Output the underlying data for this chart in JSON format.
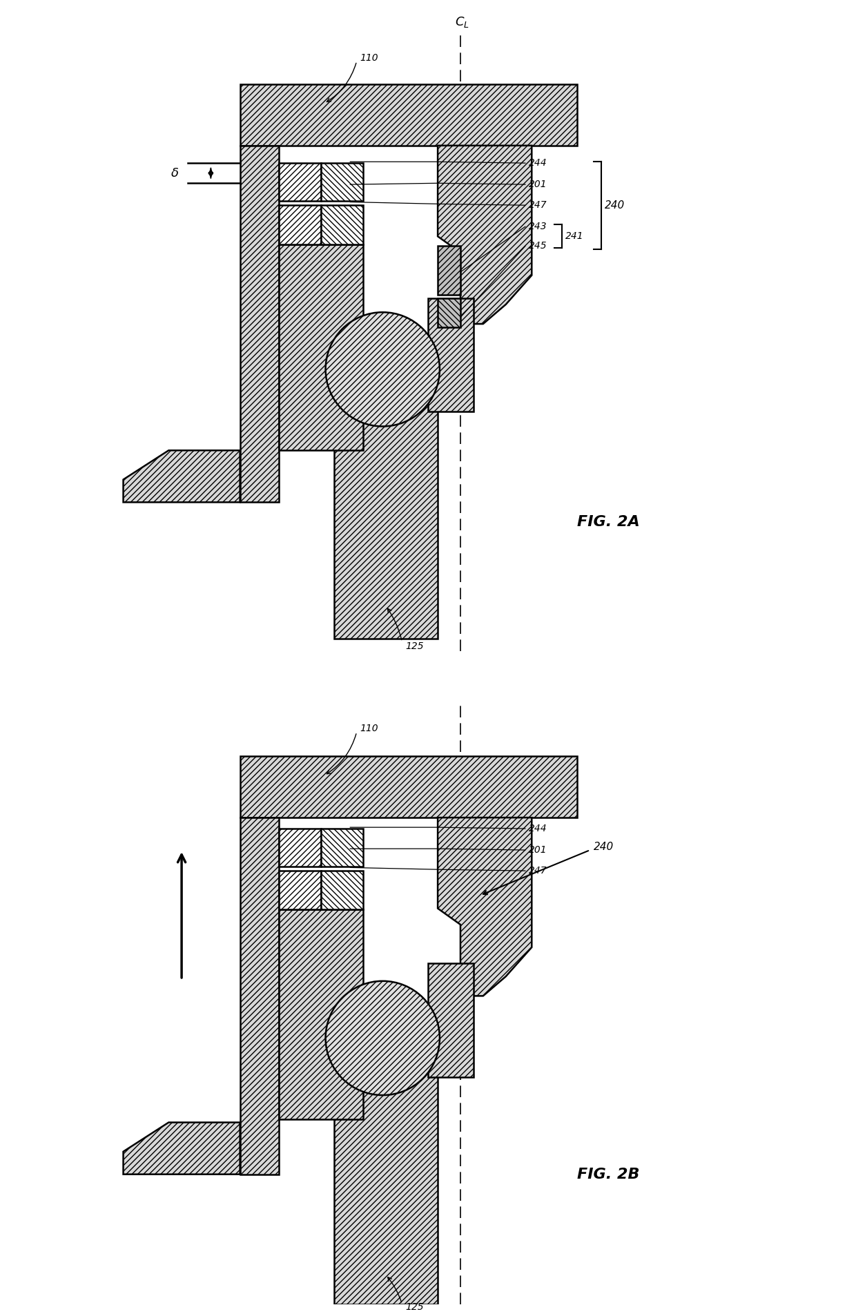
{
  "fig_title_2a": "FIG. 2A",
  "fig_title_2b": "FIG. 2B",
  "label_110": "110",
  "label_125": "125",
  "label_244": "244",
  "label_201": "201",
  "label_247": "247",
  "label_243": "243",
  "label_241": "241",
  "label_245": "245",
  "label_240": "240",
  "label_CL": "C$_L$",
  "label_delta": "δ",
  "bg_color": "#ffffff",
  "line_color": "#000000",
  "hatch_fc": "#d8d8d8"
}
